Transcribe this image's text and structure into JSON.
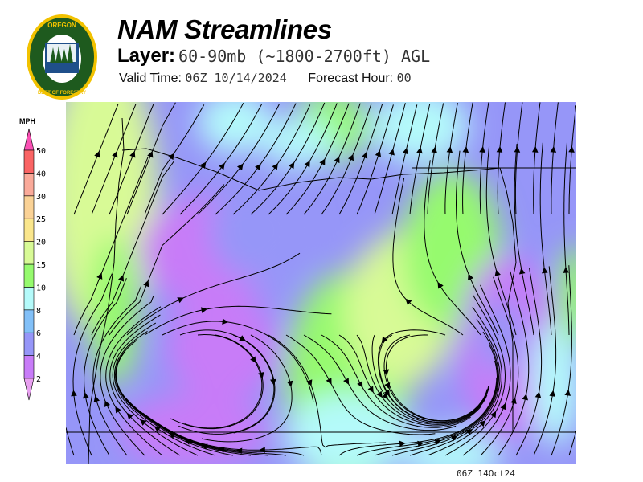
{
  "logo": {
    "top_text": "OREGON",
    "bottom_text": "DEPARTMENT OF FORESTRY",
    "icon": "oregon-forestry-seal"
  },
  "header": {
    "title": "NAM Streamlines",
    "layer_label": "Layer:",
    "layer_value": "60-90mb (~1800-2700ft) AGL",
    "valid_label": "Valid Time:",
    "valid_value": "06Z 10/14/2024",
    "forecast_label": "Forecast Hour:",
    "forecast_value": "00"
  },
  "colorbar": {
    "units": "MPH",
    "levels": [
      "2",
      "4",
      "6",
      "8",
      "10",
      "15",
      "20",
      "25",
      "30",
      "40",
      "50"
    ],
    "colors": [
      "#c87cf8",
      "#9696f8",
      "#82c0f8",
      "#b4fafa",
      "#96fa6e",
      "#d8fa96",
      "#fae68c",
      "#fad296",
      "#faaa9a",
      "#fa6464"
    ],
    "under_color": "#e8a0f0",
    "over_color": "#fa50b4"
  },
  "map": {
    "region": "Oregon",
    "field": "wind speed with streamlines"
  },
  "footer": {
    "stamp": "06Z 14Oct24"
  }
}
